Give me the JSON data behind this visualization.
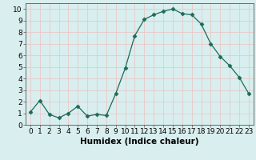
{
  "x": [
    0,
    1,
    2,
    3,
    4,
    5,
    6,
    7,
    8,
    9,
    10,
    11,
    12,
    13,
    14,
    15,
    16,
    17,
    18,
    19,
    20,
    21,
    22,
    23
  ],
  "y": [
    1.1,
    2.1,
    0.9,
    0.6,
    1.0,
    1.6,
    0.75,
    0.9,
    0.8,
    2.7,
    4.9,
    7.7,
    9.1,
    9.5,
    9.8,
    10.0,
    9.6,
    9.5,
    8.7,
    7.0,
    5.9,
    5.1,
    4.1,
    2.7
  ],
  "line_color": "#1a6b5a",
  "marker": "D",
  "marker_size": 2.5,
  "bg_color": "#d9eeee",
  "grid_color": "#e8c8c8",
  "xlabel": "Humidex (Indice chaleur)",
  "xlim": [
    -0.5,
    23.5
  ],
  "ylim": [
    0,
    10.5
  ],
  "xticks": [
    0,
    1,
    2,
    3,
    4,
    5,
    6,
    7,
    8,
    9,
    10,
    11,
    12,
    13,
    14,
    15,
    16,
    17,
    18,
    19,
    20,
    21,
    22,
    23
  ],
  "yticks": [
    0,
    1,
    2,
    3,
    4,
    5,
    6,
    7,
    8,
    9,
    10
  ],
  "xlabel_fontsize": 7.5,
  "tick_fontsize": 6.5
}
